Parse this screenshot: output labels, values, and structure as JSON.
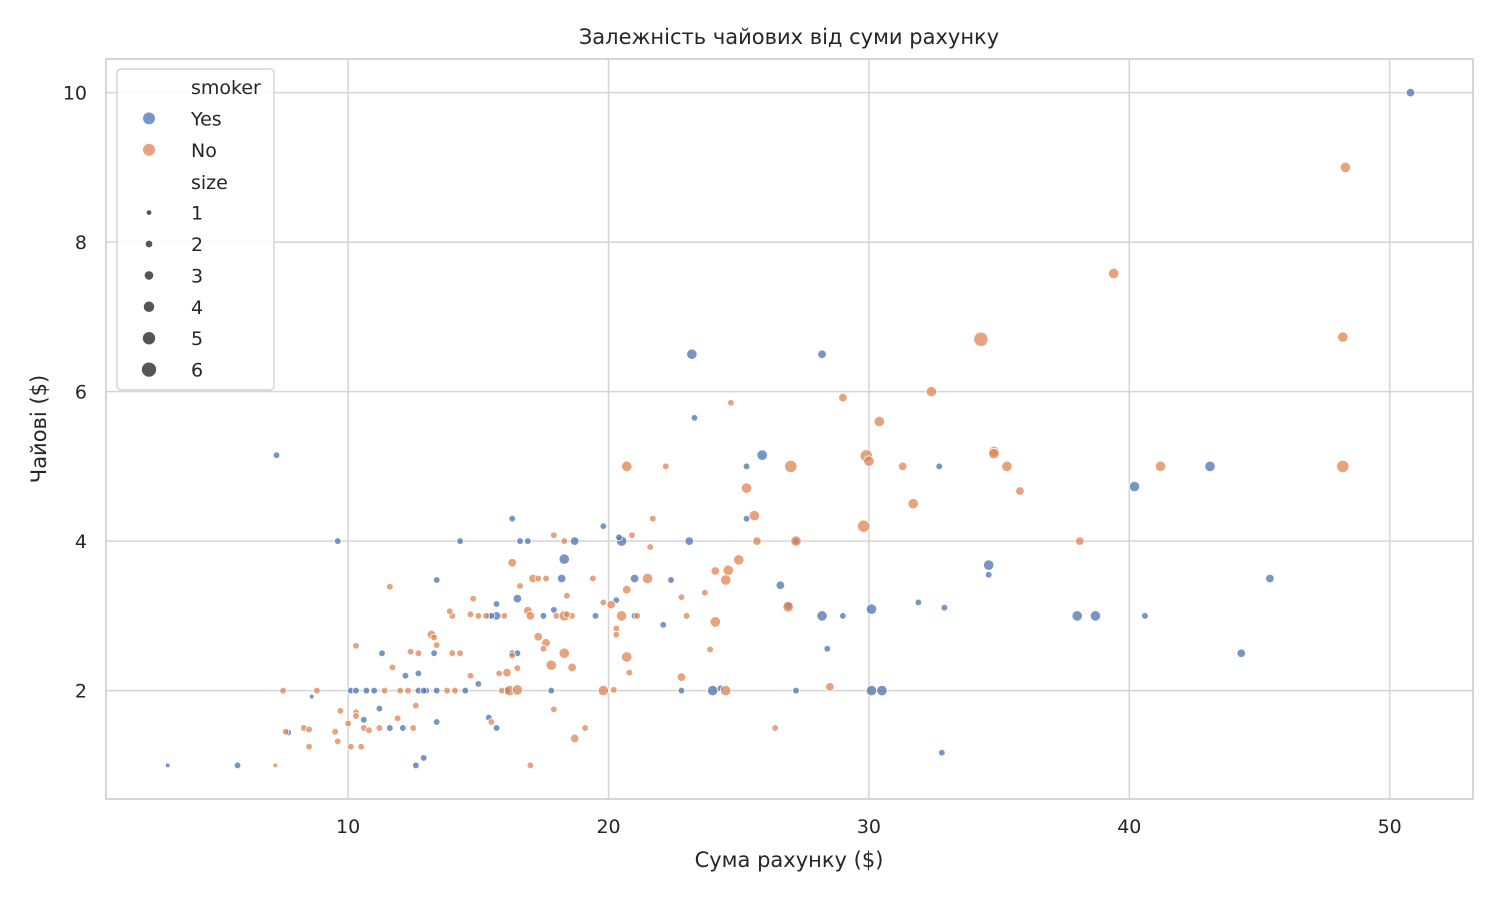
{
  "chart_data": {
    "type": "scatter",
    "title": "Залежність чайових від суми рахунку",
    "xlabel": "Сума рахунку ($)",
    "ylabel": "Чайові ($)",
    "xlim": [
      0.7,
      53.2
    ],
    "ylim": [
      0.55,
      10.45
    ],
    "xticks": [
      10,
      20,
      30,
      40,
      50
    ],
    "yticks": [
      2,
      4,
      6,
      8,
      10
    ],
    "grid": true,
    "legend_position": "top-left",
    "colors": {
      "Yes": "#4c72b0",
      "No": "#dd8452",
      "size_marker": "#555555",
      "grid": "#d4d4d4",
      "frame": "#cccccc"
    },
    "legend": {
      "hue_title": "smoker",
      "hue_entries": [
        "Yes",
        "No"
      ],
      "size_title": "size",
      "size_entries": [
        "1",
        "2",
        "3",
        "4",
        "5",
        "6"
      ]
    },
    "series": [
      {
        "name": "Yes",
        "points": [
          [
            50.8,
            10.0,
            3
          ],
          [
            23.2,
            6.5,
            4
          ],
          [
            28.2,
            6.5,
            3
          ],
          [
            23.3,
            5.65,
            2
          ],
          [
            7.25,
            5.15,
            2
          ],
          [
            25.9,
            5.15,
            4
          ],
          [
            25.3,
            5.0,
            2
          ],
          [
            32.7,
            5.0,
            2
          ],
          [
            43.1,
            5.0,
            4
          ],
          [
            40.2,
            4.73,
            4
          ],
          [
            16.3,
            4.3,
            2
          ],
          [
            25.3,
            4.3,
            2
          ],
          [
            19.8,
            4.2,
            2
          ],
          [
            9.6,
            4.0,
            2
          ],
          [
            14.3,
            4.0,
            2
          ],
          [
            16.9,
            4.0,
            2
          ],
          [
            20.5,
            4.0,
            4
          ],
          [
            23.1,
            4.0,
            3
          ],
          [
            27.2,
            4.0,
            2
          ],
          [
            18.7,
            4.0,
            3
          ],
          [
            20.4,
            4.05,
            2
          ],
          [
            16.6,
            4.0,
            2
          ],
          [
            34.6,
            3.68,
            4
          ],
          [
            34.6,
            3.55,
            2
          ],
          [
            18.3,
            3.76,
            4
          ],
          [
            45.4,
            3.5,
            3
          ],
          [
            21.0,
            3.5,
            3
          ],
          [
            13.4,
            3.48,
            2
          ],
          [
            18.2,
            3.5,
            3
          ],
          [
            22.4,
            3.48,
            2
          ],
          [
            26.6,
            3.41,
            3
          ],
          [
            16.5,
            3.23,
            3
          ],
          [
            20.3,
            3.21,
            2
          ],
          [
            31.9,
            3.18,
            2
          ],
          [
            26.9,
            3.14,
            3
          ],
          [
            15.7,
            3.16,
            2
          ],
          [
            17.9,
            3.08,
            2
          ],
          [
            32.9,
            3.11,
            2
          ],
          [
            30.1,
            3.09,
            4
          ],
          [
            28.2,
            3.0,
            4
          ],
          [
            29.0,
            3.0,
            2
          ],
          [
            38.0,
            3.0,
            4
          ],
          [
            38.7,
            3.0,
            4
          ],
          [
            40.6,
            3.0,
            2
          ],
          [
            15.4,
            3.0,
            2
          ],
          [
            15.7,
            3.0,
            3
          ],
          [
            17.5,
            3.0,
            2
          ],
          [
            19.5,
            3.0,
            2
          ],
          [
            21.0,
            3.0,
            2
          ],
          [
            15.5,
            3.0,
            2
          ],
          [
            22.1,
            2.88,
            2
          ],
          [
            28.4,
            2.56,
            2
          ],
          [
            44.3,
            2.5,
            3
          ],
          [
            11.3,
            2.5,
            2
          ],
          [
            13.3,
            2.5,
            2
          ],
          [
            16.3,
            2.5,
            2
          ],
          [
            16.5,
            2.5,
            2
          ],
          [
            12.2,
            2.2,
            2
          ],
          [
            12.7,
            2.23,
            2
          ],
          [
            15.0,
            2.09,
            2
          ],
          [
            24.0,
            2.0,
            4
          ],
          [
            24.3,
            2.03,
            2
          ],
          [
            30.1,
            2.0,
            4
          ],
          [
            30.5,
            2.0,
            4
          ],
          [
            27.2,
            2.0,
            2
          ],
          [
            22.8,
            2.0,
            2
          ],
          [
            10.1,
            2.0,
            2
          ],
          [
            10.3,
            2.0,
            2
          ],
          [
            10.7,
            2.0,
            2
          ],
          [
            11.0,
            2.0,
            2
          ],
          [
            12.7,
            2.0,
            2
          ],
          [
            13.0,
            2.0,
            2
          ],
          [
            13.4,
            2.0,
            2
          ],
          [
            14.5,
            2.0,
            2
          ],
          [
            16.1,
            2.0,
            2
          ],
          [
            17.8,
            2.0,
            2
          ],
          [
            12.9,
            2.0,
            2
          ],
          [
            15.4,
            1.64,
            2
          ],
          [
            11.2,
            1.76,
            2
          ],
          [
            10.6,
            1.61,
            2
          ],
          [
            13.4,
            1.58,
            2
          ],
          [
            11.6,
            1.5,
            2
          ],
          [
            12.1,
            1.5,
            2
          ],
          [
            15.7,
            1.5,
            2
          ],
          [
            7.7,
            1.44,
            2
          ],
          [
            8.6,
            1.92,
            1
          ],
          [
            32.8,
            1.17,
            2
          ],
          [
            12.6,
            1.0,
            2
          ],
          [
            12.9,
            1.1,
            2
          ],
          [
            5.75,
            1.0,
            2
          ],
          [
            3.07,
            1.0,
            1
          ]
        ]
      },
      {
        "name": "No",
        "points": [
          [
            48.3,
            9.0,
            4
          ],
          [
            39.4,
            7.58,
            4
          ],
          [
            34.3,
            6.7,
            6
          ],
          [
            48.2,
            6.73,
            4
          ],
          [
            32.4,
            6.0,
            4
          ],
          [
            29.0,
            5.92,
            3
          ],
          [
            24.7,
            5.85,
            2
          ],
          [
            30.4,
            5.6,
            4
          ],
          [
            34.8,
            5.2,
            4
          ],
          [
            34.8,
            5.17,
            4
          ],
          [
            29.9,
            5.14,
            5
          ],
          [
            30.0,
            5.07,
            4
          ],
          [
            20.7,
            5.0,
            4
          ],
          [
            22.2,
            5.0,
            2
          ],
          [
            27.0,
            5.0,
            5
          ],
          [
            31.3,
            5.0,
            3
          ],
          [
            35.3,
            5.0,
            4
          ],
          [
            41.2,
            5.0,
            4
          ],
          [
            48.2,
            5.0,
            5
          ],
          [
            35.8,
            4.67,
            3
          ],
          [
            25.3,
            4.71,
            4
          ],
          [
            31.7,
            4.5,
            4
          ],
          [
            25.6,
            4.34,
            4
          ],
          [
            29.8,
            4.2,
            5
          ],
          [
            21.7,
            4.3,
            2
          ],
          [
            20.9,
            4.08,
            2
          ],
          [
            17.9,
            4.08,
            2
          ],
          [
            25.7,
            4.0,
            3
          ],
          [
            27.2,
            4.0,
            4
          ],
          [
            38.1,
            4.0,
            3
          ],
          [
            18.3,
            4.0,
            2
          ],
          [
            21.6,
            3.92,
            2
          ],
          [
            24.1,
            3.6,
            3
          ],
          [
            16.3,
            3.71,
            3
          ],
          [
            25.0,
            3.75,
            4
          ],
          [
            24.6,
            3.61,
            4
          ],
          [
            23.7,
            3.31,
            2
          ],
          [
            24.5,
            3.48,
            4
          ],
          [
            21.5,
            3.5,
            4
          ],
          [
            17.1,
            3.5,
            3
          ],
          [
            17.3,
            3.5,
            2
          ],
          [
            17.6,
            3.5,
            2
          ],
          [
            19.4,
            3.5,
            2
          ],
          [
            11.6,
            3.39,
            2
          ],
          [
            20.7,
            3.35,
            3
          ],
          [
            16.6,
            3.4,
            2
          ],
          [
            22.8,
            3.25,
            2
          ],
          [
            18.4,
            3.27,
            2
          ],
          [
            14.8,
            3.23,
            2
          ],
          [
            20.1,
            3.15,
            3
          ],
          [
            19.8,
            3.18,
            2
          ],
          [
            26.9,
            3.12,
            4
          ],
          [
            16.9,
            3.07,
            3
          ],
          [
            14.0,
            3.0,
            2
          ],
          [
            15.0,
            3.0,
            2
          ],
          [
            15.3,
            3.0,
            2
          ],
          [
            16.0,
            3.0,
            2
          ],
          [
            17.0,
            3.0,
            3
          ],
          [
            18.0,
            3.0,
            2
          ],
          [
            18.3,
            3.0,
            4
          ],
          [
            18.6,
            3.0,
            2
          ],
          [
            20.5,
            3.0,
            4
          ],
          [
            21.1,
            3.0,
            2
          ],
          [
            23.0,
            3.0,
            2
          ],
          [
            14.7,
            3.02,
            2
          ],
          [
            18.4,
            3.02,
            2
          ],
          [
            13.9,
            3.06,
            2
          ],
          [
            20.3,
            2.83,
            2
          ],
          [
            20.3,
            2.75,
            2
          ],
          [
            24.1,
            2.92,
            4
          ],
          [
            17.3,
            2.72,
            3
          ],
          [
            17.6,
            2.64,
            3
          ],
          [
            13.2,
            2.75,
            3
          ],
          [
            13.3,
            2.71,
            2
          ],
          [
            13.4,
            2.61,
            2
          ],
          [
            10.3,
            2.6,
            2
          ],
          [
            18.3,
            2.5,
            4
          ],
          [
            20.7,
            2.45,
            4
          ],
          [
            23.9,
            2.55,
            2
          ],
          [
            12.4,
            2.52,
            2
          ],
          [
            12.7,
            2.5,
            2
          ],
          [
            14.0,
            2.5,
            2
          ],
          [
            14.3,
            2.5,
            2
          ],
          [
            16.3,
            2.47,
            2
          ],
          [
            17.5,
            2.56,
            2
          ],
          [
            17.8,
            2.34,
            4
          ],
          [
            18.6,
            2.31,
            3
          ],
          [
            11.7,
            2.31,
            2
          ],
          [
            16.5,
            2.3,
            2
          ],
          [
            15.8,
            2.23,
            2
          ],
          [
            16.1,
            2.24,
            3
          ],
          [
            14.7,
            2.2,
            2
          ],
          [
            22.8,
            2.18,
            3
          ],
          [
            20.8,
            2.24,
            2
          ],
          [
            7.5,
            2.0,
            2
          ],
          [
            8.8,
            2.0,
            2
          ],
          [
            11.4,
            2.0,
            2
          ],
          [
            12.0,
            2.0,
            2
          ],
          [
            12.3,
            2.0,
            2
          ],
          [
            13.8,
            2.0,
            2
          ],
          [
            14.1,
            2.0,
            2
          ],
          [
            15.9,
            2.0,
            2
          ],
          [
            16.2,
            2.0,
            4
          ],
          [
            16.5,
            2.01,
            4
          ],
          [
            19.8,
            2.0,
            4
          ],
          [
            20.2,
            2.01,
            2
          ],
          [
            24.5,
            2.0,
            4
          ],
          [
            28.5,
            2.05,
            3
          ],
          [
            12.6,
            1.8,
            2
          ],
          [
            17.9,
            1.75,
            2
          ],
          [
            9.7,
            1.73,
            2
          ],
          [
            10.3,
            1.71,
            2
          ],
          [
            10.3,
            1.66,
            2
          ],
          [
            11.9,
            1.63,
            2
          ],
          [
            10.0,
            1.56,
            2
          ],
          [
            15.5,
            1.58,
            2
          ],
          [
            8.3,
            1.5,
            2
          ],
          [
            8.5,
            1.48,
            2
          ],
          [
            10.6,
            1.5,
            2
          ],
          [
            10.8,
            1.47,
            2
          ],
          [
            11.2,
            1.5,
            2
          ],
          [
            12.5,
            1.5,
            2
          ],
          [
            19.1,
            1.5,
            2
          ],
          [
            26.4,
            1.5,
            2
          ],
          [
            7.6,
            1.45,
            2
          ],
          [
            9.5,
            1.45,
            2
          ],
          [
            18.7,
            1.36,
            3
          ],
          [
            9.6,
            1.32,
            2
          ],
          [
            10.1,
            1.25,
            2
          ],
          [
            10.5,
            1.25,
            2
          ],
          [
            8.5,
            1.25,
            2
          ],
          [
            7.2,
            1.0,
            1
          ],
          [
            17.0,
            1.0,
            2
          ]
        ]
      }
    ]
  }
}
